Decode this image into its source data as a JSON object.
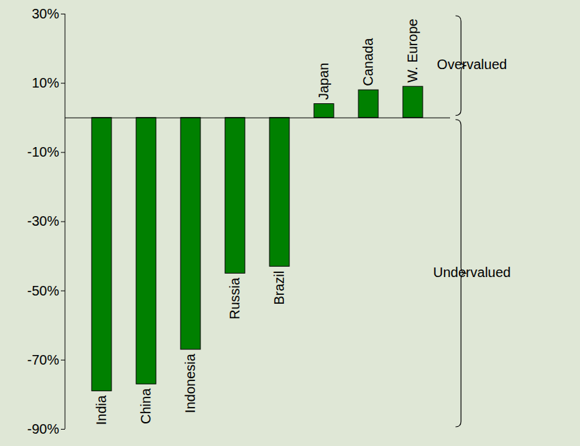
{
  "chart_data": {
    "type": "bar",
    "categories": [
      "India",
      "China",
      "Indonesia",
      "Russia",
      "Brazil",
      "Japan",
      "Canada",
      "W. Europe"
    ],
    "values": [
      -79,
      -77,
      -67,
      -45,
      -43,
      4,
      8,
      9
    ],
    "color": "#008000",
    "ylim": [
      -90,
      30
    ],
    "yticks": [
      {
        "value": -90,
        "label": "-90%"
      },
      {
        "value": -70,
        "label": "-70%"
      },
      {
        "value": -50,
        "label": "-50%"
      },
      {
        "value": -30,
        "label": "-30%"
      },
      {
        "value": -10,
        "label": "-10%"
      },
      {
        "value": 10,
        "label": "10%"
      },
      {
        "value": 30,
        "label": "30%"
      }
    ],
    "grid": false,
    "tick_labels": "y",
    "annotations": [
      {
        "text": "Overvalued",
        "y": [
          0,
          30
        ]
      },
      {
        "text": "Undervalued",
        "y": [
          -90,
          0
        ]
      }
    ]
  }
}
